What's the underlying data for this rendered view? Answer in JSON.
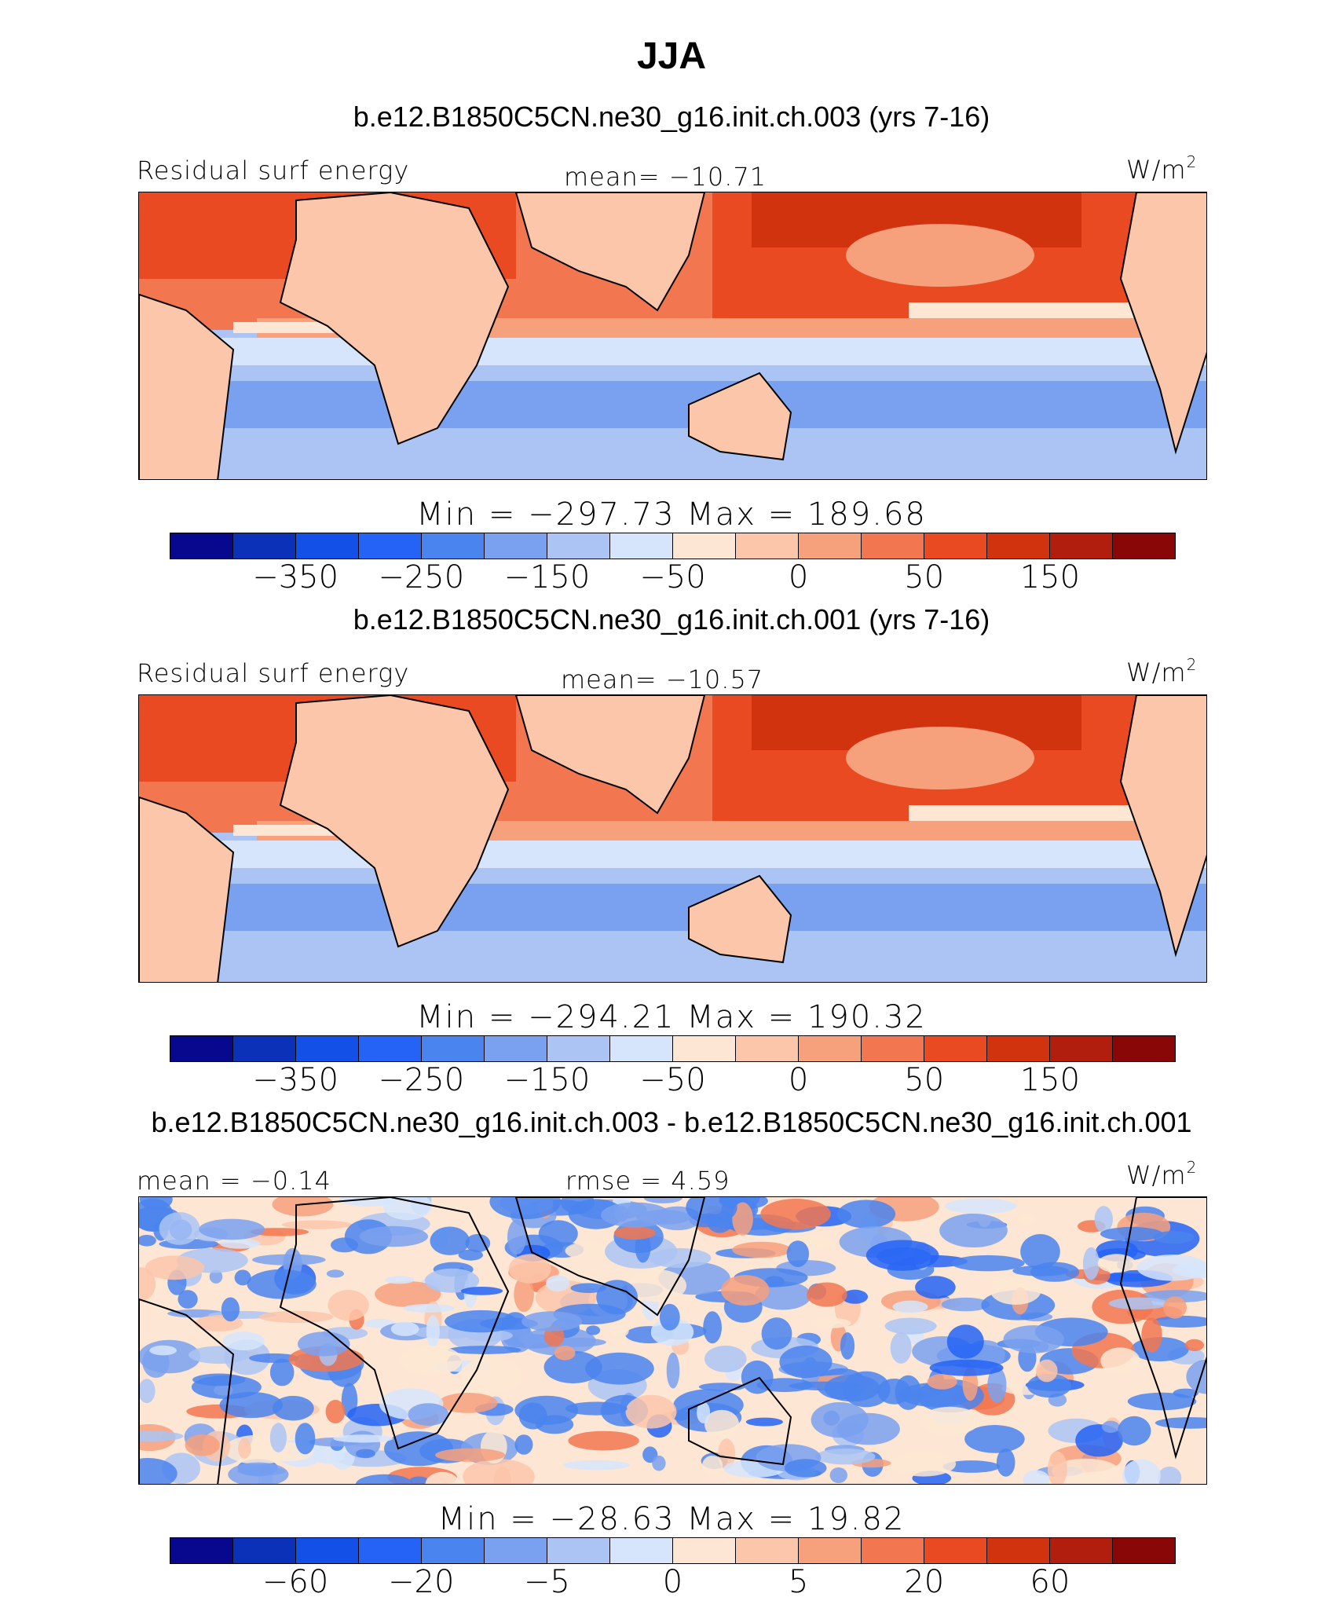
{
  "title": "JJA",
  "chart_data": [
    {
      "type": "heatmap",
      "title": "b.e12.B1850C5CN.ne30_g16.init.ch.003 (yrs 7-16)",
      "variable": "Residual surf energy",
      "units": "W/m",
      "units_exp": "2",
      "stat_label": "mean= −10.71",
      "min_max_label": "Min = −297.73 Max = 189.68",
      "min": -297.73,
      "max": 189.68,
      "mean": -10.71,
      "levels": [
        -400,
        -350,
        -300,
        -250,
        -200,
        -150,
        -100,
        -50,
        -25,
        0,
        25,
        50,
        100,
        150,
        200
      ],
      "colorbar_ticks": [
        "−350",
        "−250",
        "−150",
        "−50",
        "0",
        "50",
        "150"
      ],
      "colorbar_tick_positions": [
        1,
        3,
        5,
        7,
        9,
        11,
        13
      ]
    },
    {
      "type": "heatmap",
      "title": "b.e12.B1850C5CN.ne30_g16.init.ch.001 (yrs 7-16)",
      "variable": "Residual surf energy",
      "units": "W/m",
      "units_exp": "2",
      "stat_label": "mean= −10.57",
      "min_max_label": "Min = −294.21 Max = 190.32",
      "min": -294.21,
      "max": 190.32,
      "mean": -10.57,
      "levels": [
        -400,
        -350,
        -300,
        -250,
        -200,
        -150,
        -100,
        -50,
        -25,
        0,
        25,
        50,
        100,
        150,
        200
      ],
      "colorbar_ticks": [
        "−350",
        "−250",
        "−150",
        "−50",
        "0",
        "50",
        "150"
      ],
      "colorbar_tick_positions": [
        1,
        3,
        5,
        7,
        9,
        11,
        13
      ]
    },
    {
      "type": "heatmap",
      "title": "b.e12.B1850C5CN.ne30_g16.init.ch.003 - b.e12.B1850C5CN.ne30_g16.init.ch.001",
      "variable": "",
      "units": "W/m",
      "units_exp": "2",
      "stat_label": "mean = −0.14",
      "rmse_label": "rmse = 4.59",
      "min_max_label": "Min = −28.63 Max = 19.82",
      "min": -28.63,
      "max": 19.82,
      "mean": -0.14,
      "rmse": 4.59,
      "levels": [
        -80,
        -60,
        -40,
        -20,
        -10,
        -5,
        -2,
        0,
        2,
        5,
        10,
        20,
        40,
        60,
        80
      ],
      "colorbar_ticks": [
        "−60",
        "−20",
        "−5",
        "0",
        "5",
        "20",
        "60"
      ],
      "colorbar_tick_positions": [
        1,
        3,
        5,
        7,
        9,
        11,
        13
      ]
    }
  ],
  "colors": [
    "#08088f",
    "#0a31b8",
    "#1250e8",
    "#2463f5",
    "#4a84ef",
    "#7aa1ef",
    "#abc4f3",
    "#d6e5fb",
    "#fde7d4",
    "#fbc6aa",
    "#f7a07c",
    "#f27750",
    "#ea4a22",
    "#d2330f",
    "#b21e0d",
    "#8a0707"
  ]
}
